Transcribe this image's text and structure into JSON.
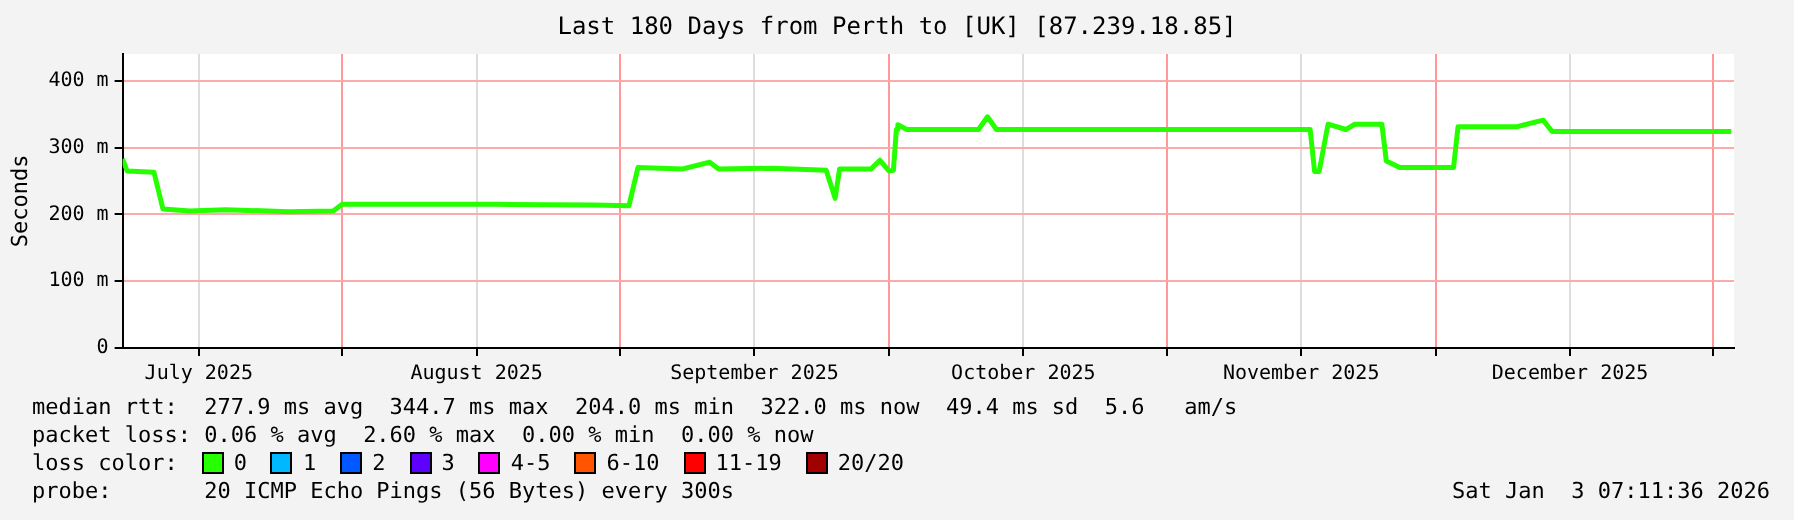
{
  "chart_data": {
    "type": "line",
    "title": "Last 180 Days from Perth to [UK] [87.239.18.85]",
    "ylabel": "Seconds",
    "legend_title": "loss color:",
    "legend": "bottom",
    "grid": true,
    "annotations": [
      "median rtt:  277.9 ms avg  344.7 ms max  204.0 ms min  322.0 ms now  49.4 ms sd  5.6   am/s",
      "packet loss: 0.06 % avg  2.60 % max  0.00 % min  0.00 % now",
      "probe:       20 ICMP Echo Pings (56 Bytes) every 300s",
      "Sat Jan  3 07:11:36 2026"
    ],
    "x": [
      "2025-07-07T12:00",
      "2025-07-08",
      "2025-07-11",
      "2025-07-12",
      "2025-07-15",
      "2025-07-19",
      "2025-07-26",
      "2025-07-31",
      "2025-08-01",
      "2025-08-18",
      "2025-08-29",
      "2025-09-02",
      "2025-09-03",
      "2025-09-08",
      "2025-09-11",
      "2025-09-12",
      "2025-09-18",
      "2025-09-24",
      "2025-09-25",
      "2025-09-25T12:00",
      "2025-09-29",
      "2025-09-30",
      "2025-10-01",
      "2025-10-01T12:00",
      "2025-10-01T20:00",
      "2025-10-02",
      "2025-10-03",
      "2025-10-11",
      "2025-10-12",
      "2025-10-13",
      "2025-10-24",
      "2025-11-04",
      "2025-11-17",
      "2025-11-17T12:00",
      "2025-11-18",
      "2025-11-19",
      "2025-11-21",
      "2025-11-22",
      "2025-11-25",
      "2025-11-25T12:00",
      "2025-11-27",
      "2025-12-03",
      "2025-12-03T12:00",
      "2025-12-10",
      "2025-12-13",
      "2025-12-14",
      "2025-12-23",
      "2026-01-03"
    ],
    "series": [
      {
        "name": "0",
        "color": "#26ff00",
        "values": [
          283,
          265,
          263,
          208,
          205,
          207,
          204,
          205,
          215,
          215,
          214,
          213,
          270,
          268,
          278,
          268,
          269,
          266,
          224,
          268,
          268,
          281,
          265,
          266,
          327,
          334,
          327,
          327,
          346,
          327,
          327,
          327,
          327,
          264,
          264,
          335,
          327,
          335,
          335,
          280,
          270,
          270,
          331,
          331,
          341,
          324,
          324,
          324
        ]
      },
      {
        "name": "1",
        "color": "#00b8ff",
        "values": [
          null,
          null,
          null,
          null,
          null,
          null,
          null,
          null,
          null,
          null,
          null,
          null,
          null,
          null,
          null,
          null,
          null,
          null,
          null,
          null,
          null,
          null,
          null,
          null,
          null,
          null,
          null,
          null,
          null,
          null,
          null,
          null,
          null,
          null,
          null,
          null,
          null,
          null,
          null,
          null,
          null,
          null,
          null,
          null,
          null,
          null,
          null,
          null
        ]
      },
      {
        "name": "2",
        "color": "#0059ff",
        "values": [
          null,
          null,
          null,
          null,
          null,
          null,
          null,
          null,
          null,
          null,
          null,
          null,
          null,
          null,
          null,
          null,
          null,
          null,
          null,
          null,
          null,
          null,
          null,
          null,
          null,
          null,
          null,
          null,
          null,
          null,
          null,
          null,
          null,
          null,
          null,
          null,
          null,
          null,
          null,
          null,
          null,
          null,
          null,
          null,
          null,
          null,
          null,
          null
        ]
      },
      {
        "name": "3",
        "color": "#5e00ff",
        "values": [
          null,
          null,
          null,
          null,
          null,
          null,
          null,
          null,
          null,
          null,
          null,
          null,
          null,
          null,
          null,
          null,
          null,
          null,
          null,
          null,
          null,
          null,
          null,
          null,
          null,
          null,
          null,
          null,
          null,
          null,
          null,
          null,
          null,
          null,
          null,
          null,
          null,
          null,
          null,
          null,
          null,
          null,
          null,
          null,
          null,
          null,
          null,
          null
        ]
      },
      {
        "name": "4-5",
        "color": "#ff00ff",
        "values": [
          null,
          null,
          null,
          null,
          null,
          null,
          null,
          null,
          null,
          null,
          null,
          null,
          null,
          null,
          null,
          null,
          null,
          null,
          null,
          null,
          null,
          null,
          null,
          null,
          null,
          null,
          null,
          null,
          null,
          null,
          null,
          null,
          null,
          null,
          null,
          null,
          null,
          null,
          null,
          null,
          null,
          null,
          null,
          null,
          null,
          null,
          null,
          null
        ]
      },
      {
        "name": "6-10",
        "color": "#ff5500",
        "values": [
          null,
          null,
          null,
          null,
          null,
          null,
          null,
          null,
          null,
          null,
          null,
          null,
          null,
          null,
          null,
          null,
          null,
          null,
          null,
          null,
          null,
          null,
          null,
          null,
          null,
          null,
          null,
          null,
          null,
          null,
          null,
          null,
          null,
          null,
          null,
          null,
          null,
          null,
          null,
          null,
          null,
          null,
          null,
          null,
          null,
          null,
          null,
          null
        ]
      },
      {
        "name": "11-19",
        "color": "#ff0000",
        "values": [
          null,
          null,
          null,
          null,
          null,
          null,
          null,
          null,
          null,
          null,
          null,
          null,
          null,
          null,
          null,
          null,
          null,
          null,
          null,
          null,
          null,
          null,
          null,
          null,
          null,
          null,
          null,
          null,
          null,
          null,
          null,
          null,
          null,
          null,
          null,
          null,
          null,
          null,
          null,
          null,
          null,
          null,
          null,
          null,
          null,
          null,
          null,
          null
        ]
      },
      {
        "name": "20/20",
        "color": "#a10000",
        "values": [
          null,
          null,
          null,
          null,
          null,
          null,
          null,
          null,
          null,
          null,
          null,
          null,
          null,
          null,
          null,
          null,
          null,
          null,
          null,
          null,
          null,
          null,
          null,
          null,
          null,
          null,
          null,
          null,
          null,
          null,
          null,
          null,
          null,
          null,
          null,
          null,
          null,
          null,
          null,
          null,
          null,
          null,
          null,
          null,
          null,
          null,
          null,
          null
        ]
      }
    ],
    "xlim": [
      "2025-07-07T12:00",
      "2026-01-03T07:00"
    ],
    "xticks": [
      {
        "value": "2025-07-16",
        "label": "July 2025"
      },
      {
        "value": "2025-08-01",
        "label": null
      },
      {
        "value": "2025-08-16",
        "label": "August 2025"
      },
      {
        "value": "2025-09-01",
        "label": null
      },
      {
        "value": "2025-09-16",
        "label": "September 2025"
      },
      {
        "value": "2025-10-01",
        "label": null
      },
      {
        "value": "2025-10-16",
        "label": "October 2025"
      },
      {
        "value": "2025-11-01",
        "label": null
      },
      {
        "value": "2025-11-16",
        "label": "November 2025"
      },
      {
        "value": "2025-12-01",
        "label": null
      },
      {
        "value": "2025-12-16",
        "label": "December 2025"
      },
      {
        "value": "2026-01-01",
        "label": null
      }
    ],
    "ylim": [
      0,
      440
    ],
    "yticks": [
      {
        "value": 0,
        "label": "0"
      },
      {
        "value": 100,
        "label": "100 m"
      },
      {
        "value": 200,
        "label": "200 m"
      },
      {
        "value": 300,
        "label": "300 m"
      },
      {
        "value": 400,
        "label": "400 m"
      }
    ]
  }
}
